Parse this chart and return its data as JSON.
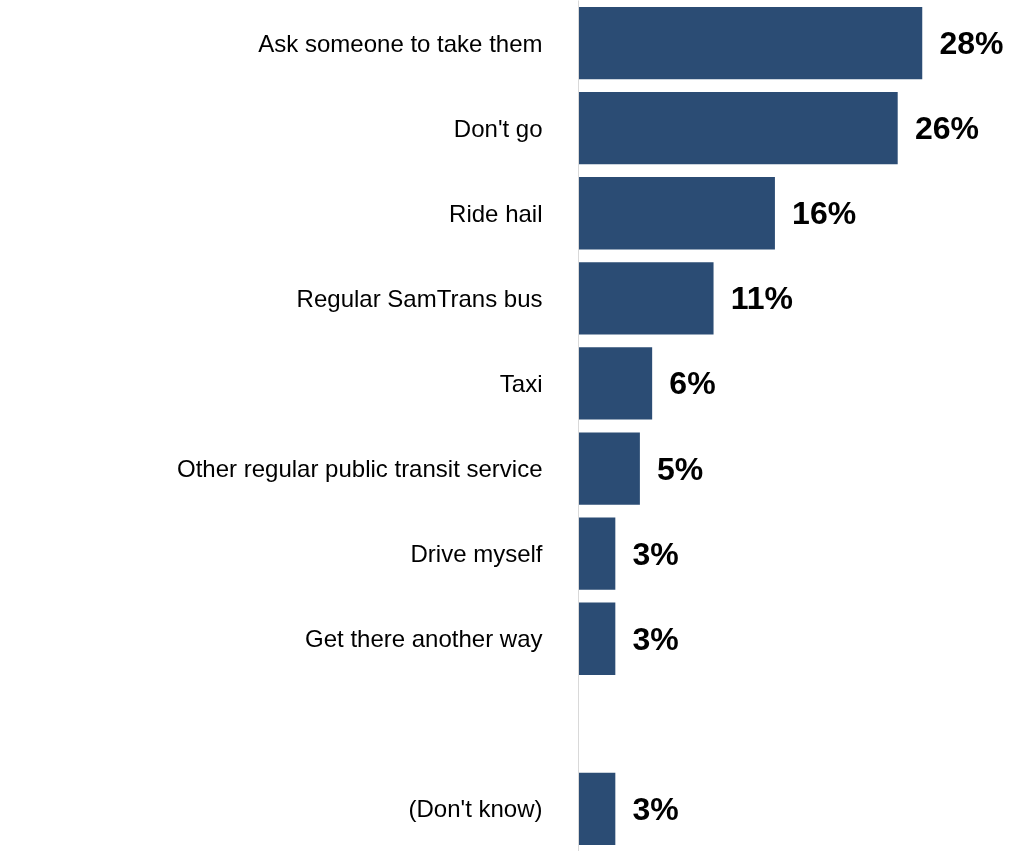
{
  "chart_data": {
    "type": "bar",
    "orientation": "horizontal",
    "categories": [
      "Ask someone to take them",
      "Don't go",
      "Ride hail",
      "Regular SamTrans bus",
      "Taxi",
      "Other regular public transit service",
      "Drive myself",
      "Get there another way",
      null,
      "(Don't know)"
    ],
    "values": [
      28,
      26,
      16,
      11,
      6,
      5,
      3,
      3,
      null,
      3
    ],
    "value_labels": [
      "28%",
      "26%",
      "16%",
      "11%",
      "6%",
      "5%",
      "3%",
      "3%",
      null,
      "3%"
    ],
    "color": "#2b4c74",
    "grid": false,
    "legend": false
  }
}
